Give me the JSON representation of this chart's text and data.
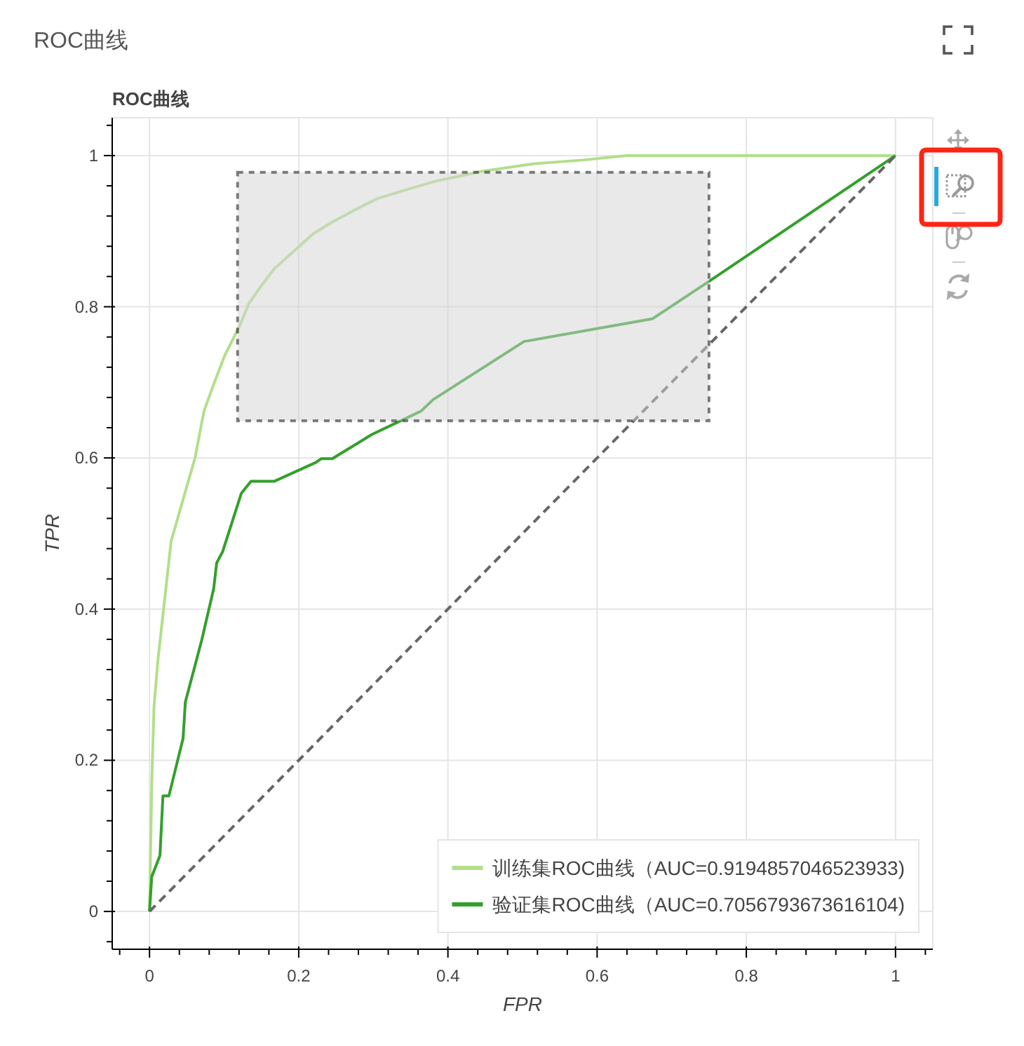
{
  "chart_data": {
    "type": "line",
    "title": "ROC曲线",
    "subtitle": "ROC曲线",
    "xlabel": "FPR",
    "ylabel": "TPR",
    "xlim": [
      -0.05,
      1.05
    ],
    "ylim": [
      -0.05,
      1.05
    ],
    "xticks": [
      {
        "value": -0.04,
        "label": null
      },
      0,
      {
        "value": 0.04,
        "label": null
      },
      {
        "value": 0.08,
        "label": null
      },
      {
        "value": 0.12,
        "label": null
      },
      {
        "value": 0.16,
        "label": null
      },
      0.2,
      {
        "value": 0.24,
        "label": null
      },
      {
        "value": 0.28,
        "label": null
      },
      {
        "value": 0.32,
        "label": null
      },
      {
        "value": 0.36,
        "label": null
      },
      0.4,
      {
        "value": 0.44,
        "label": null
      },
      {
        "value": 0.48,
        "label": null
      },
      {
        "value": 0.52,
        "label": null
      },
      {
        "value": 0.56,
        "label": null
      },
      0.6,
      {
        "value": 0.64,
        "label": null
      },
      {
        "value": 0.68,
        "label": null
      },
      {
        "value": 0.72,
        "label": null
      },
      {
        "value": 0.76,
        "label": null
      },
      0.8,
      {
        "value": 0.84,
        "label": null
      },
      {
        "value": 0.88,
        "label": null
      },
      {
        "value": 0.92,
        "label": null
      },
      {
        "value": 0.96,
        "label": null
      },
      1,
      {
        "value": 1.04,
        "label": null
      }
    ],
    "yticks": [
      {
        "value": -0.04,
        "label": null
      },
      0,
      {
        "value": 0.04,
        "label": null
      },
      {
        "value": 0.08,
        "label": null
      },
      {
        "value": 0.12,
        "label": null
      },
      {
        "value": 0.16,
        "label": null
      },
      0.2,
      {
        "value": 0.24,
        "label": null
      },
      {
        "value": 0.28,
        "label": null
      },
      {
        "value": 0.32,
        "label": null
      },
      {
        "value": 0.36,
        "label": null
      },
      0.4,
      {
        "value": 0.44,
        "label": null
      },
      {
        "value": 0.48,
        "label": null
      },
      {
        "value": 0.52,
        "label": null
      },
      {
        "value": 0.56,
        "label": null
      },
      0.6,
      {
        "value": 0.64,
        "label": null
      },
      {
        "value": 0.68,
        "label": null
      },
      {
        "value": 0.72,
        "label": null
      },
      {
        "value": 0.76,
        "label": null
      },
      0.8,
      {
        "value": 0.84,
        "label": null
      },
      {
        "value": 0.88,
        "label": null
      },
      {
        "value": 0.92,
        "label": null
      },
      {
        "value": 0.96,
        "label": null
      },
      1,
      {
        "value": 1.04,
        "label": null
      }
    ],
    "grid": true,
    "legend": "bottom right",
    "series": [
      {
        "name": "训练集ROC曲线（AUC=0.9194857046523933)",
        "color": "#b2df8a",
        "x": [
          0,
          0.001,
          0.003,
          0.006,
          0.011,
          0.02,
          0.029,
          0.045,
          0.061,
          0.073,
          0.087,
          0.101,
          0.12,
          0.133,
          0.15,
          0.167,
          0.195,
          0.22,
          0.245,
          0.275,
          0.305,
          0.345,
          0.383,
          0.445,
          0.514,
          0.58,
          0.639,
          0.8,
          1
        ],
        "values": [
          0,
          0.056,
          0.17,
          0.27,
          0.33,
          0.41,
          0.49,
          0.545,
          0.6,
          0.662,
          0.7,
          0.736,
          0.773,
          0.804,
          0.828,
          0.85,
          0.875,
          0.897,
          0.912,
          0.928,
          0.943,
          0.955,
          0.966,
          0.979,
          0.989,
          0.994,
          1,
          1,
          1
        ]
      },
      {
        "name": "验证集ROC曲线（AUC=0.7056793673616104)",
        "color": "#33a02c",
        "x": [
          0,
          0.003,
          0.014,
          0.018,
          0.026,
          0.045,
          0.048,
          0.07,
          0.086,
          0.09,
          0.098,
          0.123,
          0.136,
          0.167,
          0.223,
          0.23,
          0.245,
          0.298,
          0.364,
          0.38,
          0.502,
          0.674,
          0.752,
          1
        ],
        "values": [
          0,
          0.046,
          0.074,
          0.153,
          0.153,
          0.229,
          0.277,
          0.359,
          0.427,
          0.461,
          0.476,
          0.553,
          0.569,
          0.569,
          0.594,
          0.599,
          0.599,
          0.631,
          0.662,
          0.677,
          0.754,
          0.784,
          0.835,
          1
        ]
      },
      {
        "color": "#666666",
        "line_style": "dashed",
        "x": [
          0,
          1
        ],
        "values": [
          0,
          1
        ]
      }
    ]
  }
}
